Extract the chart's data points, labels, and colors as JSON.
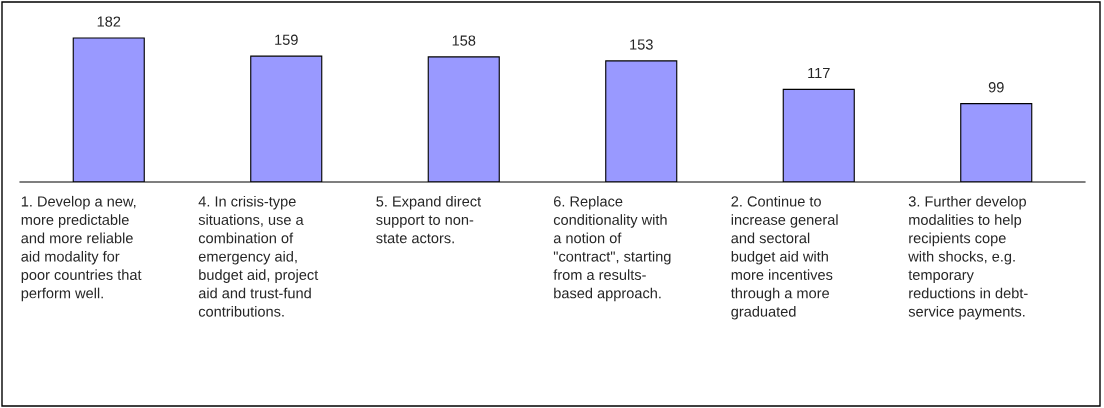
{
  "chart_data": {
    "type": "bar",
    "categories": [
      "1. Develop a new,\nmore predictable\nand more reliable\naid modality for\npoor countries that\nperform well.",
      "4. In crisis-type\nsituations, use a\ncombination of\nemergency aid,\nbudget aid, project\naid and trust-fund\ncontributions.",
      "5. Expand direct\nsupport to non-\nstate actors.",
      "6. Replace\nconditionality with\na notion of\n\"contract\", starting\nfrom a results-\nbased approach.",
      "2. Continue to\nincrease general\nand sectoral\nbudget aid with\nmore incentives\nthrough a more\ngraduated",
      "3. Further develop\nmodalities to help\nrecipients cope\nwith shocks, e.g.\ntemporary\nreductions in debt-\nservice payments."
    ],
    "values": [
      182,
      159,
      158,
      153,
      117,
      99
    ],
    "color": "#9999ff",
    "data_labels": true,
    "grid": false,
    "legend": false
  }
}
